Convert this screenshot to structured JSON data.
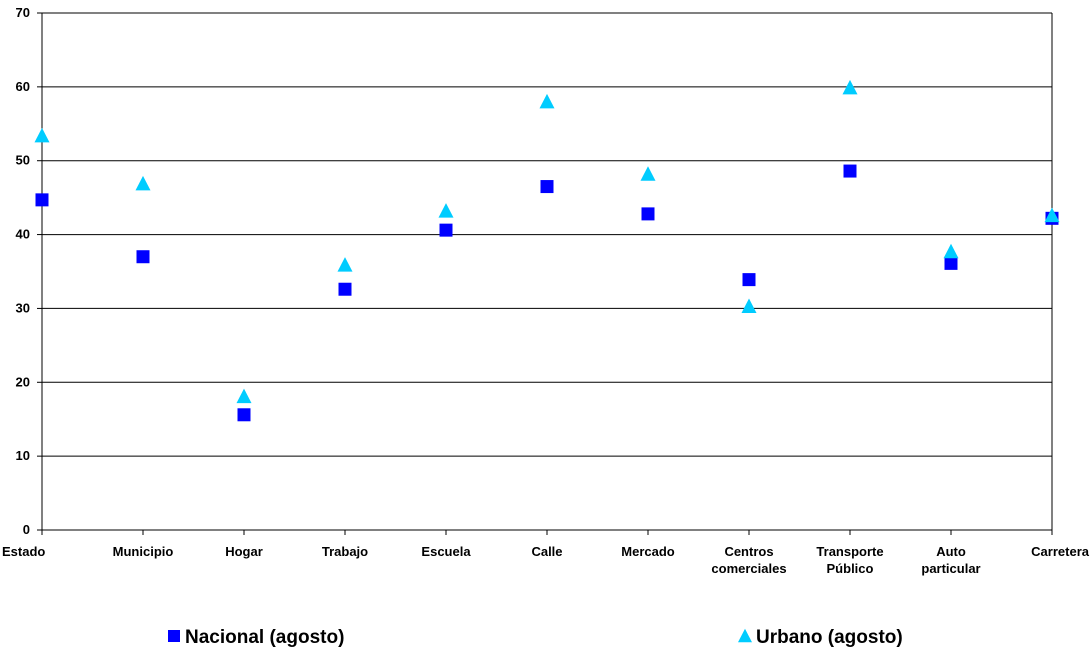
{
  "chart_data": {
    "type": "scatter",
    "categories": [
      [
        "Estado"
      ],
      [
        "Municipio"
      ],
      [
        "Hogar"
      ],
      [
        "Trabajo"
      ],
      [
        "Escuela"
      ],
      [
        "Calle"
      ],
      [
        "Mercado"
      ],
      [
        "Centros",
        "comerciales"
      ],
      [
        "Transporte",
        "Público"
      ],
      [
        "Auto",
        "particular"
      ],
      [
        "Carretera"
      ]
    ],
    "series": [
      {
        "name": "Nacional (agosto)",
        "marker": "square",
        "color": "#0000ff",
        "values": [
          44.7,
          37.0,
          15.6,
          32.6,
          40.6,
          46.5,
          42.8,
          33.9,
          48.6,
          36.1,
          42.2
        ]
      },
      {
        "name": "Urbano (agosto)",
        "marker": "triangle",
        "color": "#00ccff",
        "values": [
          53.4,
          46.9,
          18.1,
          35.9,
          43.2,
          58.0,
          48.2,
          30.3,
          59.9,
          37.7,
          42.6
        ]
      }
    ],
    "ylim": [
      0,
      70
    ],
    "yticks": [
      0,
      10,
      20,
      30,
      40,
      50,
      60,
      70
    ],
    "grid": true,
    "legend": "bottom",
    "title": "",
    "xlabel": "",
    "ylabel": ""
  }
}
